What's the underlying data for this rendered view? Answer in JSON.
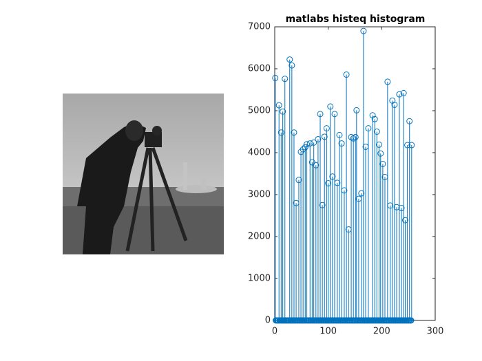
{
  "chart_data": {
    "type": "stem",
    "title": "matlabs histeq histogram",
    "color": "#0072bd",
    "xlim": [
      0,
      300
    ],
    "xticks": [
      0,
      100,
      200,
      300
    ],
    "ylim": [
      0,
      7000
    ],
    "yticks": [
      0,
      1000,
      2000,
      3000,
      4000,
      5000,
      6000,
      7000
    ],
    "x": [
      1,
      2,
      3,
      4,
      5,
      6,
      7,
      8,
      9,
      10,
      11,
      12,
      13,
      14,
      15,
      16,
      17,
      18,
      19,
      20,
      21,
      22,
      23,
      24,
      25,
      26,
      27,
      28,
      29,
      30,
      31,
      32,
      33,
      34,
      35,
      36,
      37,
      38,
      39,
      40,
      41,
      42,
      43,
      44,
      45,
      46,
      47,
      48,
      49,
      50,
      51,
      52,
      53,
      54,
      55,
      56,
      57,
      58,
      59,
      60,
      61,
      62,
      63,
      64,
      65,
      66,
      67,
      68,
      69,
      70,
      71,
      72,
      73,
      74,
      75,
      76,
      77,
      78,
      79,
      80,
      81,
      82,
      83,
      84,
      85,
      86,
      87,
      88,
      89,
      90,
      91,
      92,
      93,
      94,
      95,
      96,
      97,
      98,
      99,
      100,
      101,
      102,
      103,
      104,
      105,
      106,
      107,
      108,
      109,
      110,
      111,
      112,
      113,
      114,
      115,
      116,
      117,
      118,
      119,
      120,
      121,
      122,
      123,
      124,
      125,
      126,
      127,
      128,
      129,
      130,
      131,
      132,
      133,
      134,
      135,
      136,
      137,
      138,
      139,
      140,
      141,
      142,
      143,
      144,
      145,
      146,
      147,
      148,
      149,
      150,
      151,
      152,
      153,
      154,
      155,
      156,
      157,
      158,
      159,
      160,
      161,
      162,
      163,
      164,
      165,
      166,
      167,
      168,
      169,
      170,
      171,
      172,
      173,
      174,
      175,
      176,
      177,
      178,
      179,
      180,
      181,
      182,
      183,
      184,
      185,
      186,
      187,
      188,
      189,
      190,
      191,
      192,
      193,
      194,
      195,
      196,
      197,
      198,
      199,
      200,
      201,
      202,
      203,
      204,
      205,
      206,
      207,
      208,
      209,
      210,
      211,
      212,
      213,
      214,
      215,
      216,
      217,
      218,
      219,
      220,
      221,
      222,
      223,
      224,
      225,
      226,
      227,
      228,
      229,
      230,
      231,
      232,
      233,
      234,
      235,
      236,
      237,
      238,
      239,
      240,
      241,
      242,
      243,
      244,
      245,
      246,
      247,
      248,
      249,
      250,
      251,
      252,
      253,
      254,
      255,
      256
    ],
    "values": [
      5780,
      0,
      0,
      0,
      0,
      0,
      0,
      5130,
      0,
      0,
      0,
      4480,
      0,
      0,
      4980,
      0,
      0,
      0,
      5760,
      0,
      0,
      0,
      0,
      0,
      0,
      0,
      0,
      6220,
      0,
      0,
      0,
      6080,
      0,
      0,
      0,
      4480,
      0,
      0,
      0,
      2800,
      0,
      0,
      0,
      0,
      3350,
      0,
      0,
      0,
      4020,
      0,
      0,
      0,
      4080,
      0,
      0,
      0,
      4130,
      0,
      0,
      4200,
      0,
      0,
      0,
      0,
      0,
      4220,
      0,
      0,
      0,
      3770,
      0,
      0,
      4240,
      0,
      0,
      0,
      3700,
      0,
      0,
      0,
      4320,
      0,
      0,
      0,
      4920,
      0,
      0,
      0,
      2750,
      0,
      0,
      0,
      4380,
      0,
      0,
      0,
      4580,
      0,
      0,
      3270,
      0,
      0,
      0,
      5100,
      0,
      0,
      0,
      3430,
      0,
      0,
      0,
      4920,
      0,
      0,
      0,
      0,
      3280,
      0,
      0,
      0,
      4420,
      0,
      0,
      0,
      4220,
      0,
      0,
      0,
      0,
      3100,
      0,
      0,
      0,
      5860,
      0,
      0,
      0,
      2170,
      0,
      0,
      0,
      0,
      4370,
      0,
      0,
      0,
      4340,
      0,
      0,
      0,
      4370,
      0,
      5010,
      0,
      0,
      0,
      2900,
      0,
      0,
      0,
      0,
      3030,
      0,
      0,
      0,
      6900,
      0,
      0,
      0,
      4140,
      0,
      0,
      0,
      0,
      4580,
      0,
      0,
      0,
      0,
      0,
      0,
      0,
      4890,
      0,
      0,
      0,
      4800,
      0,
      0,
      0,
      4500,
      0,
      0,
      0,
      4190,
      0,
      0,
      3980,
      0,
      0,
      0,
      3730,
      0,
      0,
      0,
      3420,
      0,
      0,
      0,
      0,
      5690,
      0,
      0,
      0,
      0,
      2740,
      0,
      0,
      0,
      5240,
      0,
      0,
      0,
      5140,
      0,
      0,
      0,
      2700,
      0,
      0,
      0,
      0,
      5390,
      0,
      0,
      0,
      2680,
      0,
      0,
      0,
      5420,
      0,
      0,
      2390,
      0,
      0,
      0,
      4180,
      0,
      0,
      0,
      4750,
      0,
      0,
      0,
      4180
    ]
  }
}
